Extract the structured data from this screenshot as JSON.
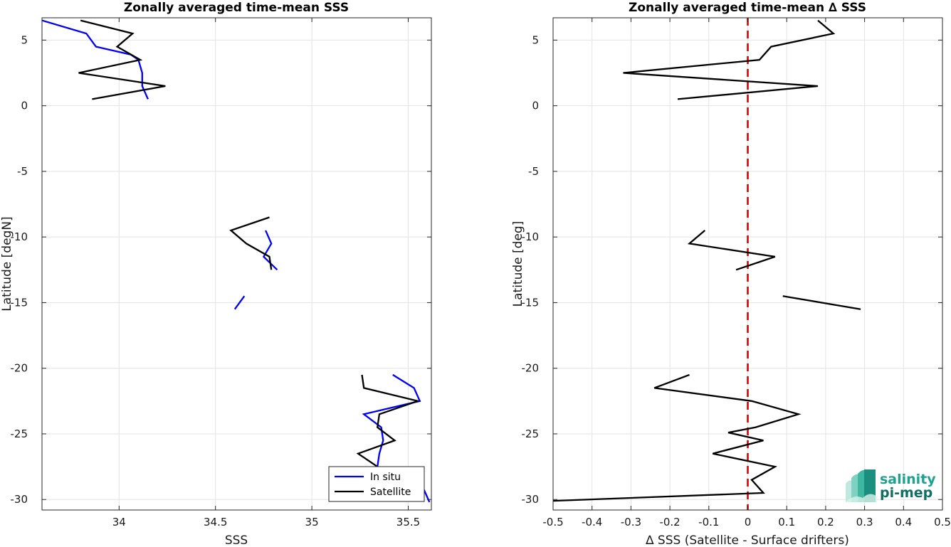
{
  "chart_data": [
    {
      "type": "line",
      "title": "Zonally averaged time-mean SSS",
      "xlabel": "SSS",
      "ylabel": "Latitude [degN]",
      "xlim": [
        33.6,
        35.62
      ],
      "ylim": [
        -30.8,
        6.7
      ],
      "xticks": [
        "34",
        "34.5",
        "35",
        "35.5"
      ],
      "xtick_values": [
        34,
        34.5,
        35,
        35.5
      ],
      "yticks": [
        "-30",
        "-25",
        "-20",
        "-15",
        "-10",
        "-5",
        "0",
        "5"
      ],
      "ytick_values": [
        -30,
        -25,
        -20,
        -15,
        -10,
        -5,
        0,
        5
      ],
      "grid": true,
      "legend_position": "bottom-right",
      "series": [
        {
          "name": "In situ",
          "color": "#0000ff",
          "segments": [
            [
              [
                33.6,
                6.5
              ],
              [
                33.83,
                5.5
              ],
              [
                33.88,
                4.5
              ],
              [
                34.06,
                3.9
              ],
              [
                34.1,
                3.5
              ],
              [
                34.12,
                2.5
              ],
              [
                34.12,
                1.5
              ],
              [
                34.15,
                0.5
              ]
            ],
            [
              [
                34.76,
                -9.5
              ],
              [
                34.79,
                -10.5
              ],
              [
                34.75,
                -11.5
              ],
              [
                34.82,
                -12.5
              ]
            ],
            [
              [
                34.65,
                -14.5
              ],
              [
                34.6,
                -15.5
              ]
            ],
            [
              [
                35.42,
                -20.5
              ],
              [
                35.53,
                -21.5
              ],
              [
                35.56,
                -22.5
              ],
              [
                35.27,
                -23.5
              ],
              [
                35.36,
                -24.5
              ],
              [
                35.37,
                -25.5
              ],
              [
                35.35,
                -26.5
              ],
              [
                35.34,
                -27.5
              ],
              [
                35.36,
                -28.5
              ],
              [
                35.58,
                -29.2
              ],
              [
                35.61,
                -30.2
              ]
            ]
          ]
        },
        {
          "name": "Satellite",
          "color": "#000000",
          "segments": [
            [
              [
                33.8,
                6.5
              ],
              [
                34.07,
                5.5
              ],
              [
                33.99,
                4.5
              ],
              [
                34.11,
                3.5
              ],
              [
                33.79,
                2.5
              ],
              [
                34.24,
                1.5
              ],
              [
                33.86,
                0.5
              ]
            ],
            [
              [
                34.78,
                -8.5
              ],
              [
                34.58,
                -9.5
              ],
              [
                34.66,
                -10.5
              ],
              [
                34.78,
                -11.5
              ],
              [
                34.79,
                -12.5
              ]
            ],
            [
              [
                35.26,
                -20.5
              ],
              [
                35.27,
                -21.5
              ],
              [
                35.55,
                -22.5
              ],
              [
                35.35,
                -23.5
              ],
              [
                35.34,
                -24.5
              ],
              [
                35.43,
                -25.5
              ],
              [
                35.24,
                -26.5
              ],
              [
                35.34,
                -27.5
              ]
            ]
          ]
        }
      ]
    },
    {
      "type": "line",
      "title": "Zonally averaged time-mean ∆ SSS",
      "xlabel": "∆ SSS (Satellite - Surface drifters)",
      "ylabel": "Latitude [deg]",
      "xlim": [
        -0.5,
        0.5
      ],
      "ylim": [
        -30.8,
        6.7
      ],
      "xticks": [
        "-0.5",
        "-0.4",
        "-0.3",
        "-0.2",
        "-0.1",
        "0",
        "0.1",
        "0.2",
        "0.3",
        "0.4",
        "0.5"
      ],
      "xtick_values": [
        -0.5,
        -0.4,
        -0.3,
        -0.2,
        -0.1,
        0,
        0.1,
        0.2,
        0.3,
        0.4,
        0.5
      ],
      "yticks": [
        "-30",
        "-25",
        "-20",
        "-15",
        "-10",
        "-5",
        "0",
        "5"
      ],
      "ytick_values": [
        -30,
        -25,
        -20,
        -15,
        -10,
        -5,
        0,
        5
      ],
      "grid": true,
      "reference_line": {
        "x": 0,
        "color": "#e00000",
        "style": "dashed"
      },
      "series": [
        {
          "color": "#000000",
          "segments": [
            [
              [
                0.18,
                6.5
              ],
              [
                0.22,
                5.5
              ],
              [
                0.06,
                4.5
              ],
              [
                0.03,
                3.5
              ],
              [
                -0.32,
                2.5
              ],
              [
                0.18,
                1.5
              ],
              [
                -0.18,
                0.5
              ]
            ],
            [
              [
                -0.11,
                -9.5
              ],
              [
                -0.15,
                -10.5
              ],
              [
                0.07,
                -11.5
              ],
              [
                -0.03,
                -12.5
              ]
            ],
            [
              [
                0.09,
                -14.5
              ],
              [
                0.29,
                -15.5
              ]
            ],
            [
              [
                -0.15,
                -20.5
              ],
              [
                -0.24,
                -21.5
              ],
              [
                0.01,
                -22.5
              ],
              [
                0.13,
                -23.5
              ],
              [
                0.02,
                -24.5
              ],
              [
                -0.05,
                -24.9
              ],
              [
                0.04,
                -25.5
              ],
              [
                -0.09,
                -26.5
              ],
              [
                0.07,
                -27.5
              ],
              [
                0.01,
                -28.5
              ],
              [
                0.04,
                -29.5
              ],
              [
                -0.5,
                -30.1
              ]
            ]
          ]
        }
      ]
    }
  ],
  "logo": {
    "line1": "salinity",
    "line2": "pi-mep",
    "color_light": "#1ba38f",
    "color_dark": "#0e6f62"
  }
}
